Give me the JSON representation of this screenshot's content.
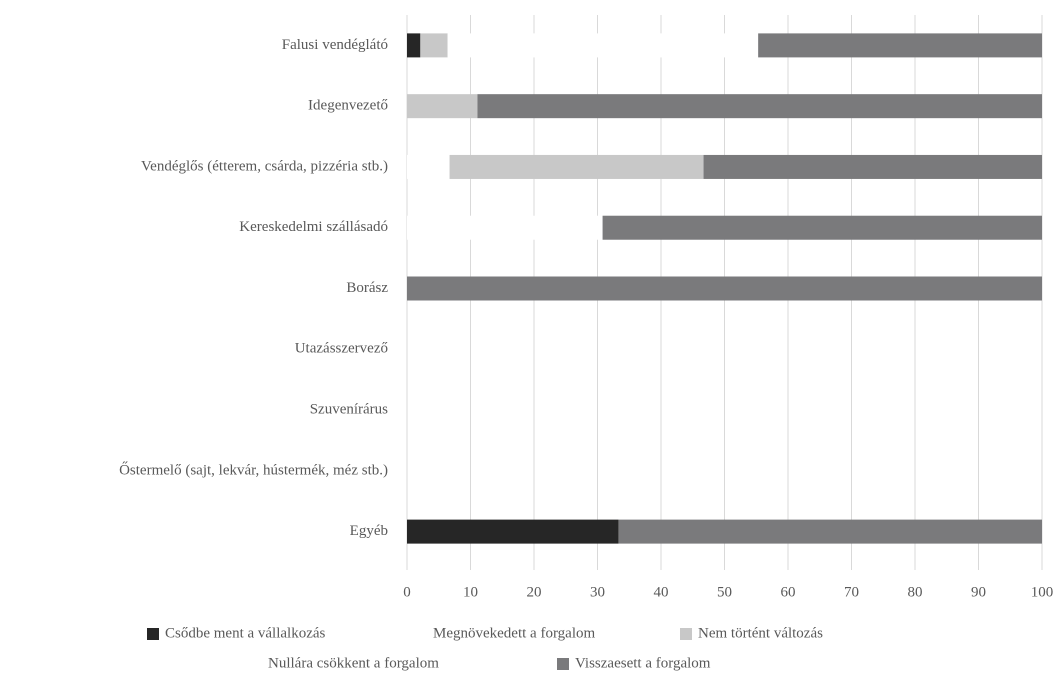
{
  "chart_data": {
    "type": "stacked-bar-horizontal",
    "categories": [
      "Falusi vendéglátó",
      "Idegenvezető",
      "Vendéglős (étterem, csárda, pizzéria stb.)",
      "Kereskedelmi szállásadó",
      "Borász",
      "Utazásszervező",
      "Szuvenírárus",
      "Őstermelő (sajt, lekvár, hústermék, méz stb.)",
      "Egyéb"
    ],
    "series": [
      {
        "name": "Csődbe ment a vállalkozás",
        "color": "#262626",
        "values": [
          2.1,
          0,
          0,
          0,
          0,
          0,
          0,
          0,
          33.3
        ]
      },
      {
        "name": "Megnövekedett a forgalom",
        "color": "#ffffff",
        "values": [
          0,
          0,
          6.7,
          0,
          0,
          0,
          0,
          0,
          0
        ]
      },
      {
        "name": "Nem történt változás",
        "color": "#c8c8c8",
        "values": [
          4.3,
          11.1,
          40,
          0,
          0,
          0,
          0,
          0,
          0
        ]
      },
      {
        "name": "Nullára csökkent a forgalom",
        "color": "#ffffff",
        "values": [
          48.9,
          0,
          0,
          30.8,
          0,
          0,
          0,
          0,
          0
        ]
      },
      {
        "name": "Visszaesett a forgalom",
        "color": "#7a7a7c",
        "values": [
          44.7,
          88.9,
          53.3,
          69.2,
          100,
          0,
          0,
          0,
          66.7
        ]
      }
    ],
    "xlim": [
      0,
      100
    ],
    "xticks": [
      0,
      10,
      20,
      30,
      40,
      50,
      60,
      70,
      80,
      90,
      100
    ],
    "grid": true,
    "legend": "bottom"
  }
}
